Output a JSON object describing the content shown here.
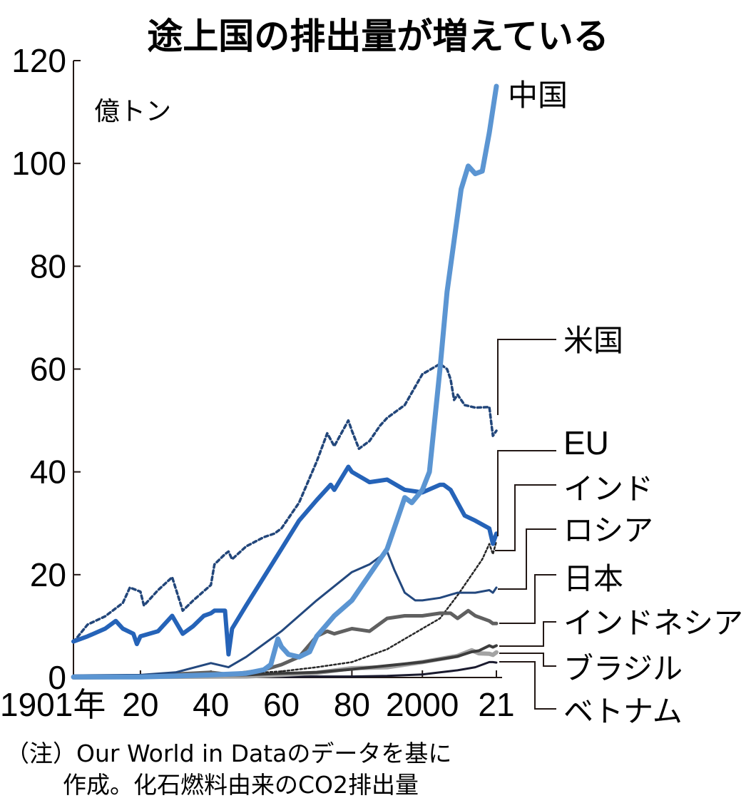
{
  "colors": {
    "china": "#5b95d2",
    "usa": "#22467a",
    "eu": "#2563b8",
    "india": "#262626",
    "russia": "#23487e",
    "japan": "#606060",
    "indonesia": "#3c3c3c",
    "brazil": "#a3a3a3",
    "vietnam": "#1a1a2e",
    "axis": "#231815"
  },
  "chart_data": {
    "type": "line",
    "title": "途上国の排出量が増えている",
    "ylabel": "億トン",
    "xlim": [
      1901,
      2021
    ],
    "ylim": [
      0,
      120
    ],
    "yticks": [
      0,
      20,
      40,
      60,
      80,
      100,
      120
    ],
    "ytick_labels": [
      "0",
      "20",
      "40",
      "60",
      "80",
      "100",
      "120"
    ],
    "xticks": [
      1901,
      1920,
      1940,
      1960,
      1980,
      2000,
      2021
    ],
    "xtick_labels": [
      "1901年",
      "20",
      "40",
      "60",
      "80",
      "2000",
      "21"
    ],
    "series": [
      {
        "key": "usa",
        "name": "米国",
        "style": "dotted",
        "x": [
          1901,
          1905,
          1910,
          1915,
          1917,
          1920,
          1921,
          1925,
          1929,
          1932,
          1935,
          1940,
          1941,
          1944,
          1945,
          1946,
          1950,
          1955,
          1958,
          1960,
          1965,
          1970,
          1973,
          1975,
          1979,
          1980,
          1982,
          1985,
          1988,
          1990,
          1995,
          2000,
          2005,
          2007,
          2008,
          2009,
          2010,
          2012,
          2015,
          2019,
          2020,
          2021
        ],
        "values": [
          6.9,
          10.3,
          11.9,
          14.5,
          17.5,
          16.7,
          14.0,
          17.0,
          19.5,
          13.0,
          15.0,
          18.0,
          22.0,
          24.0,
          24.5,
          23.0,
          25.5,
          27.3,
          28.0,
          29.0,
          34.0,
          42.0,
          47.5,
          45.0,
          50.0,
          48.0,
          44.5,
          46.0,
          49.0,
          50.5,
          53.0,
          59.0,
          61.0,
          60.0,
          58.0,
          54.0,
          55.0,
          53.0,
          52.5,
          52.6,
          47.0,
          48.0
        ]
      },
      {
        "key": "eu",
        "name": "EU",
        "style": "solid",
        "width": 6,
        "x": [
          1901,
          1905,
          1910,
          1913,
          1915,
          1918,
          1919,
          1920,
          1925,
          1929,
          1932,
          1935,
          1938,
          1940,
          1941,
          1944,
          1945,
          1946,
          1950,
          1955,
          1960,
          1965,
          1970,
          1974,
          1975,
          1979,
          1980,
          1985,
          1990,
          1995,
          2000,
          2005,
          2006,
          2008,
          2010,
          2012,
          2015,
          2019,
          2020,
          2021
        ],
        "values": [
          7.0,
          8.0,
          9.5,
          11.0,
          9.5,
          8.5,
          6.5,
          8.0,
          9.0,
          12.0,
          8.5,
          10.0,
          12.0,
          12.5,
          13.0,
          13.0,
          4.5,
          9.5,
          14.0,
          19.5,
          25.0,
          30.5,
          34.5,
          37.5,
          36.5,
          41.0,
          40.0,
          38.0,
          38.5,
          36.5,
          36.0,
          37.5,
          37.5,
          36.5,
          34.0,
          31.5,
          30.5,
          29.0,
          26.0,
          28.0
        ]
      },
      {
        "key": "china",
        "name": "中国",
        "style": "solid",
        "width": 7,
        "x": [
          1901,
          1920,
          1940,
          1950,
          1955,
          1957,
          1959,
          1960,
          1962,
          1965,
          1968,
          1970,
          1975,
          1980,
          1985,
          1990,
          1995,
          1997,
          2000,
          2002,
          2005,
          2007,
          2009,
          2011,
          2013,
          2015,
          2017,
          2019,
          2021
        ],
        "values": [
          0.1,
          0.1,
          0.5,
          0.8,
          1.5,
          2.5,
          7.5,
          6.0,
          4.5,
          4.0,
          5.0,
          8.0,
          12.0,
          15.0,
          20.0,
          25.0,
          35.0,
          34.0,
          36.5,
          40.0,
          60.0,
          75.0,
          85.0,
          95.0,
          99.5,
          98.0,
          98.5,
          106.0,
          115.0
        ]
      },
      {
        "key": "russia",
        "name": "ロシア",
        "style": "solid",
        "width": 3,
        "x": [
          1901,
          1920,
          1930,
          1940,
          1945,
          1950,
          1960,
          1970,
          1980,
          1985,
          1988,
          1990,
          1992,
          1995,
          1998,
          2000,
          2005,
          2010,
          2015,
          2019,
          2020,
          2021
        ],
        "values": [
          0.4,
          0.5,
          1.0,
          2.8,
          2.0,
          4.0,
          9.0,
          15.0,
          20.5,
          22.0,
          23.5,
          24.5,
          21.0,
          16.5,
          15.0,
          15.0,
          15.5,
          16.5,
          16.5,
          17.0,
          16.5,
          17.5
        ]
      },
      {
        "key": "japan",
        "name": "日本",
        "style": "solid",
        "width": 5,
        "x": [
          1901,
          1920,
          1940,
          1945,
          1950,
          1955,
          1960,
          1965,
          1970,
          1973,
          1975,
          1980,
          1985,
          1990,
          1995,
          2000,
          2005,
          2008,
          2010,
          2013,
          2015,
          2019,
          2020,
          2021
        ],
        "values": [
          0.1,
          0.3,
          1.0,
          0.6,
          1.0,
          1.5,
          2.5,
          4.0,
          8.0,
          9.0,
          8.5,
          9.5,
          9.0,
          11.5,
          12.0,
          12.0,
          12.5,
          12.5,
          11.5,
          13.0,
          12.0,
          11.0,
          10.5,
          10.5
        ]
      },
      {
        "key": "india",
        "name": "インド",
        "style": "dotted",
        "width": 2.5,
        "x": [
          1901,
          1920,
          1940,
          1950,
          1960,
          1970,
          1980,
          1990,
          1995,
          2000,
          2005,
          2010,
          2013,
          2015,
          2017,
          2019,
          2020,
          2021
        ],
        "values": [
          0.1,
          0.3,
          0.5,
          0.8,
          1.2,
          2.0,
          3.0,
          5.5,
          7.5,
          9.5,
          11.5,
          16.0,
          19.0,
          21.0,
          23.0,
          26.0,
          24.0,
          26.5
        ]
      },
      {
        "key": "brazil",
        "name": "ブラジル",
        "style": "solid",
        "width": 6,
        "x": [
          1901,
          1920,
          1950,
          1960,
          1970,
          1980,
          1990,
          2000,
          2010,
          2014,
          2016,
          2019,
          2020,
          2021
        ],
        "values": [
          0.0,
          0.1,
          0.2,
          0.5,
          0.9,
          1.8,
          2.0,
          3.0,
          4.2,
          5.3,
          4.7,
          4.6,
          4.4,
          4.9
        ]
      },
      {
        "key": "indonesia",
        "name": "インドネシア",
        "style": "solid",
        "width": 4,
        "x": [
          1901,
          1920,
          1950,
          1960,
          1970,
          1980,
          1990,
          2000,
          2010,
          2014,
          2016,
          2019,
          2020,
          2021
        ],
        "values": [
          0.1,
          0.2,
          0.5,
          0.8,
          1.0,
          1.6,
          2.3,
          3.0,
          4.1,
          5.0,
          5.2,
          6.2,
          5.9,
          6.2
        ]
      },
      {
        "key": "vietnam",
        "name": "ベトナム",
        "style": "solid",
        "width": 3,
        "x": [
          1901,
          1950,
          1970,
          1980,
          1990,
          2000,
          2005,
          2010,
          2015,
          2019,
          2020,
          2021
        ],
        "values": [
          0.0,
          0.1,
          0.2,
          0.2,
          0.3,
          0.6,
          1.0,
          1.4,
          2.0,
          3.0,
          3.0,
          2.9
        ]
      }
    ],
    "annotations": [
      {
        "key": "china",
        "text": "中国"
      },
      {
        "key": "usa",
        "text": "米国"
      },
      {
        "key": "eu",
        "text": "EU"
      },
      {
        "key": "india",
        "text": "インド"
      },
      {
        "key": "russia",
        "text": "ロシア"
      },
      {
        "key": "japan",
        "text": "日本"
      },
      {
        "key": "indonesia",
        "text": "インドネシア"
      },
      {
        "key": "brazil",
        "text": "ブラジル"
      },
      {
        "key": "vietnam",
        "text": "ベトナム"
      }
    ]
  },
  "note": {
    "line1": "（注）Our World in Dataのデータを基に",
    "line2": "作成。化石燃料由来のCO2排出量"
  }
}
